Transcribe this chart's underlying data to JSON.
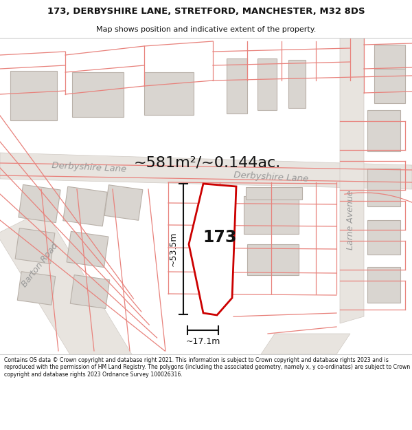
{
  "title_line1": "173, DERBYSHIRE LANE, STRETFORD, MANCHESTER, M32 8DS",
  "title_line2": "Map shows position and indicative extent of the property.",
  "area_text": "~581m²/~0.144ac.",
  "property_number": "173",
  "dim_vertical": "~53.5m",
  "dim_horizontal": "~17.1m",
  "road_label1": "Derbyshire Lane",
  "road_label2": "Derbyshire Lane",
  "road_label3": "Barton Road",
  "road_label4": "Larne Avenue",
  "footer_text": "Contains OS data © Crown copyright and database right 2021. This information is subject to Crown copyright and database rights 2023 and is reproduced with the permission of HM Land Registry. The polygons (including the associated geometry, namely x, y co-ordinates) are subject to Crown copyright and database rights 2023 Ordnance Survey 100026316.",
  "bg_color": "#ffffff",
  "map_bg": "#f7f6f4",
  "road_fill": "#e8e4df",
  "building_fill": "#d9d5d0",
  "building_edge": "#b8b0a8",
  "pink_color": "#e8827c",
  "property_fill": "#ffffff",
  "property_edge": "#cc0000",
  "dim_color": "#111111",
  "title_color": "#111111",
  "road_text_color": "#999999",
  "footer_color": "#111111"
}
